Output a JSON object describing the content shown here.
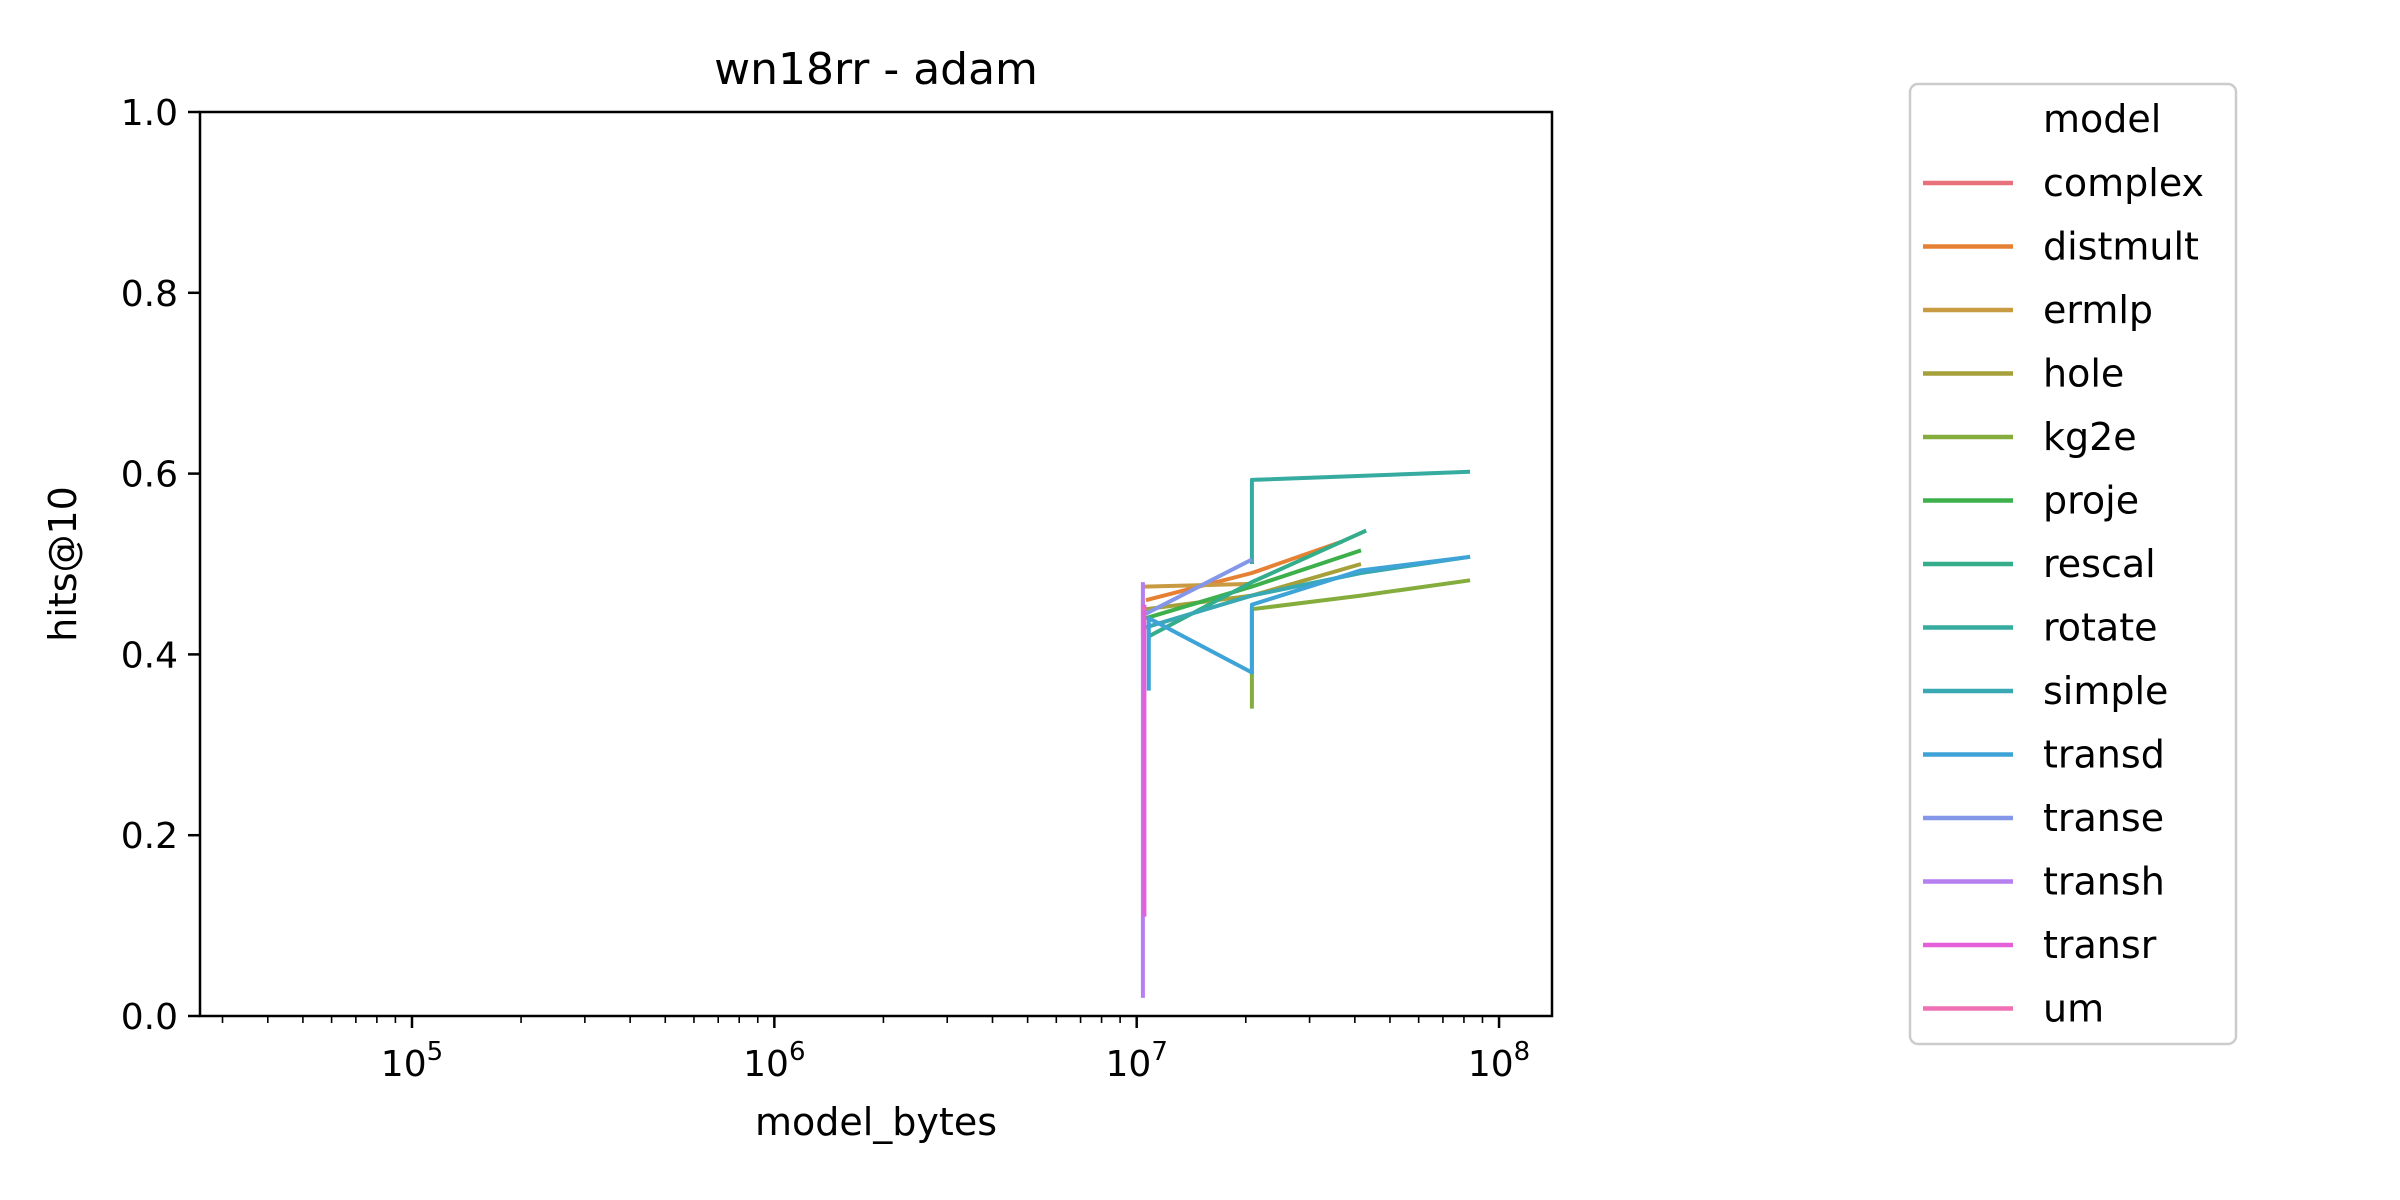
{
  "chart_data": {
    "type": "line",
    "title": "wn18rr - adam",
    "xlabel": "model_bytes",
    "ylabel": "hits@10",
    "xscale": "log",
    "xlim": [
      26000,
      140000000
    ],
    "ylim": [
      0,
      1
    ],
    "yticks": [
      "0.0",
      "0.2",
      "0.4",
      "0.6",
      "0.8",
      "1.0"
    ],
    "xticks": [
      {
        "value": 100000,
        "mantissa": "10",
        "exp": "5"
      },
      {
        "value": 1000000,
        "mantissa": "10",
        "exp": "6"
      },
      {
        "value": 10000000,
        "mantissa": "10",
        "exp": "7"
      },
      {
        "value": 100000000,
        "mantissa": "10",
        "exp": "8"
      }
    ],
    "grid": false,
    "legend": {
      "title": "model",
      "placement": "outside-right"
    },
    "series": [
      {
        "name": "complex",
        "color": "#e8707a",
        "points": [
          [
            10400000,
            0.42
          ],
          [
            10400000,
            0.46
          ]
        ]
      },
      {
        "name": "distmult",
        "color": "#e68033",
        "points": [
          [
            10600000,
            0.46
          ],
          [
            20800000,
            0.49
          ],
          [
            37000000,
            0.525
          ]
        ]
      },
      {
        "name": "ermlp",
        "color": "#c89a42",
        "points": [
          [
            10500000,
            0.475
          ],
          [
            20800000,
            0.478
          ]
        ]
      },
      {
        "name": "hole",
        "color": "#a6a03a",
        "points": [
          [
            10600000,
            0.45
          ],
          [
            20800000,
            0.465
          ],
          [
            41600000,
            0.5
          ]
        ]
      },
      {
        "name": "kg2e",
        "color": "#85ad3d",
        "points": [
          [
            20800000,
            0.34
          ],
          [
            20800000,
            0.45
          ],
          [
            41600000,
            0.465
          ],
          [
            83200000,
            0.482
          ]
        ]
      },
      {
        "name": "proje",
        "color": "#3db04b",
        "points": [
          [
            10600000,
            0.44
          ],
          [
            20800000,
            0.475
          ],
          [
            41600000,
            0.515
          ]
        ]
      },
      {
        "name": "rescal",
        "color": "#33ad8a",
        "points": [
          [
            10800000,
            0.42
          ],
          [
            20800000,
            0.48
          ],
          [
            43000000,
            0.537
          ]
        ]
      },
      {
        "name": "rotate",
        "color": "#36ab9f",
        "points": [
          [
            20800000,
            0.5
          ],
          [
            20800000,
            0.593
          ],
          [
            83200000,
            0.602
          ]
        ]
      },
      {
        "name": "simple",
        "color": "#38a8b3",
        "points": [
          [
            10600000,
            0.43
          ],
          [
            20800000,
            0.465
          ],
          [
            41600000,
            0.49
          ],
          [
            83200000,
            0.508
          ]
        ]
      },
      {
        "name": "transd",
        "color": "#3ea4d7",
        "points": [
          [
            10800000,
            0.36
          ],
          [
            10800000,
            0.44
          ],
          [
            20800000,
            0.38
          ],
          [
            20800000,
            0.455
          ],
          [
            41600000,
            0.493
          ],
          [
            83200000,
            0.508
          ]
        ]
      },
      {
        "name": "transe",
        "color": "#8396e7",
        "points": [
          [
            10600000,
            0.445
          ],
          [
            20800000,
            0.505
          ]
        ]
      },
      {
        "name": "transh",
        "color": "#b57ff0",
        "points": [
          [
            10400000,
            0.02
          ],
          [
            10400000,
            0.48
          ]
        ]
      },
      {
        "name": "transr",
        "color": "#e45fd8",
        "points": [
          [
            10500000,
            0.11
          ],
          [
            10500000,
            0.455
          ]
        ]
      },
      {
        "name": "um",
        "color": "#ef71b3",
        "points": [
          [
            10400000,
            0.45
          ],
          [
            10450000,
            0.452
          ]
        ]
      }
    ]
  }
}
